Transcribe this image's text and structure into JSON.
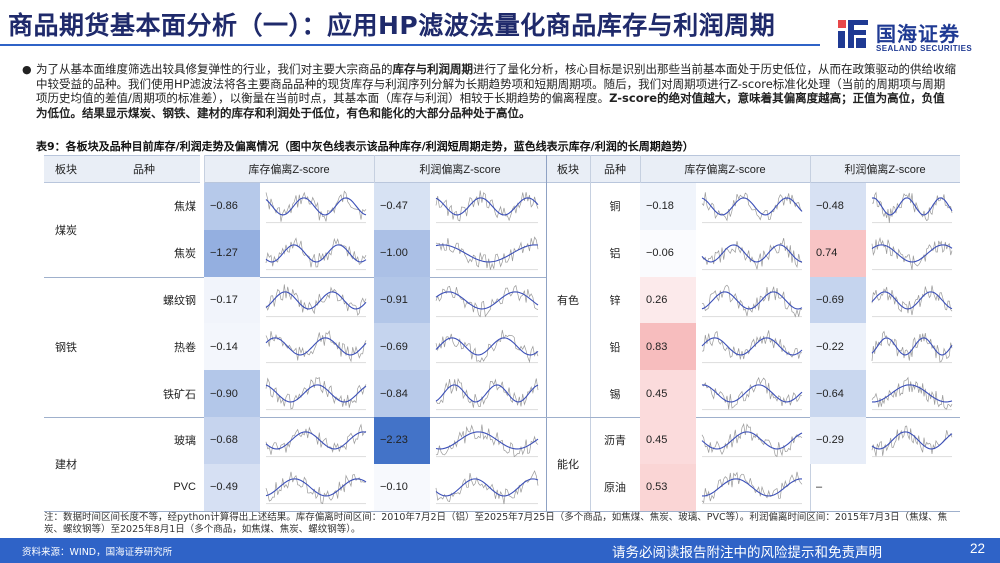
{
  "title": "商品期货基本面分析（一）：应用HP滤波法量化商品库存与利润周期",
  "logo": {
    "cn": "国海证券",
    "en": "SEALAND SECURITIES"
  },
  "intro": {
    "p1": "为了从基本面维度筛选出较具修复弹性的行业，我们对主要大宗商品的",
    "p1_bold": "库存与利润周期",
    "p2": "进行了量化分析，核心目标是识别出那些当前基本面处于历史低位，从而在政策驱动的供给收缩中较受益的品种。我们使用HP滤波法将各主要商品品种的现货库存与利润序列分解为长期趋势项和短期周期项。随后，我们对周期项进行Z-score标准化处理（当前的周期项与周期项历史均值的差值/周期项的标准差），以衡量在当前时点，其基本面（库存与利润）相较于长期趋势的偏离程度。",
    "p3_bold": "Z-score的绝对值越大，意味着其偏离度越高；正值为高位，负值为低位。结果显示煤炭、钢铁、建材的库存和利润处于低位，有色和能化的大部分品种处于高位。"
  },
  "table_caption": "表9：各板块及品种目前库存/利润走势及偏离情况（图中灰色线表示该品种库存/利润短周期走势，蓝色线表示库存/利润的长周期趋势）",
  "headers": {
    "sector": "板块",
    "variety": "品种",
    "inv": "库存偏离Z-score",
    "profit": "利润偏离Z-score"
  },
  "left_groups": [
    {
      "sector": "煤炭",
      "rows": [
        0,
        1
      ]
    },
    {
      "sector": "钢铁",
      "rows": [
        2,
        3,
        4
      ]
    },
    {
      "sector": "建材",
      "rows": [
        5,
        6
      ]
    }
  ],
  "right_groups": [
    {
      "sector": "有色",
      "rows": [
        0,
        1,
        2,
        3,
        4
      ]
    },
    {
      "sector": "能化",
      "rows": [
        5,
        6
      ]
    }
  ],
  "left_rows": [
    {
      "variety": "焦煤",
      "inv": "−0.86",
      "inv_v": -0.86,
      "profit": "−0.47",
      "profit_v": -0.47
    },
    {
      "variety": "焦炭",
      "inv": "−1.27",
      "inv_v": -1.27,
      "profit": "−1.00",
      "profit_v": -1.0
    },
    {
      "variety": "螺纹钢",
      "inv": "−0.17",
      "inv_v": -0.17,
      "profit": "−0.91",
      "profit_v": -0.91
    },
    {
      "variety": "热卷",
      "inv": "−0.14",
      "inv_v": -0.14,
      "profit": "−0.69",
      "profit_v": -0.69
    },
    {
      "variety": "铁矿石",
      "inv": "−0.90",
      "inv_v": -0.9,
      "profit": "−0.84",
      "profit_v": -0.84
    },
    {
      "variety": "玻璃",
      "inv": "−0.68",
      "inv_v": -0.68,
      "profit": "−2.23",
      "profit_v": -2.23
    },
    {
      "variety": "PVC",
      "inv": "−0.49",
      "inv_v": -0.49,
      "profit": "−0.10",
      "profit_v": -0.1
    }
  ],
  "right_rows": [
    {
      "variety": "铜",
      "inv": "−0.18",
      "inv_v": -0.18,
      "profit": "−0.48",
      "profit_v": -0.48
    },
    {
      "variety": "铝",
      "inv": "−0.06",
      "inv_v": -0.06,
      "profit": "0.74",
      "profit_v": 0.74
    },
    {
      "variety": "锌",
      "inv": "0.26",
      "inv_v": 0.26,
      "profit": "−0.69",
      "profit_v": -0.69
    },
    {
      "variety": "铅",
      "inv": "0.83",
      "inv_v": 0.83,
      "profit": "−0.22",
      "profit_v": -0.22
    },
    {
      "variety": "锡",
      "inv": "0.45",
      "inv_v": 0.45,
      "profit": "−0.64",
      "profit_v": -0.64
    },
    {
      "variety": "沥青",
      "inv": "0.45",
      "inv_v": 0.45,
      "profit": "−0.29",
      "profit_v": -0.29
    },
    {
      "variety": "原油",
      "inv": "0.53",
      "inv_v": 0.53,
      "profit": "–",
      "profit_v": null
    }
  ],
  "colors": {
    "negative": "#3d6fc6",
    "positive": "#e8474a",
    "header_bg": "#e9eef6",
    "brand": "#2f63c7",
    "short_cycle_line": "#9a9a9a",
    "long_trend_line": "#3b4fb8"
  },
  "note": "注：数据时间区间长度不等，经python计算得出上述结果。库存偏离时间区间：2010年7月2日（铝）至2025年7月25日（多个商品，如焦煤、焦炭、玻璃、PVC等）。利润偏离时间区间：2015年7月3日（焦煤、焦炭、螺纹钢等）至2025年8月1日（多个商品，如焦煤、焦炭、螺纹钢等）。",
  "footer": {
    "source": "资料来源：WIND，国海证券研究所",
    "disclaimer": "请务必阅读报告附注中的风险提示和免责声明",
    "page": "22"
  }
}
